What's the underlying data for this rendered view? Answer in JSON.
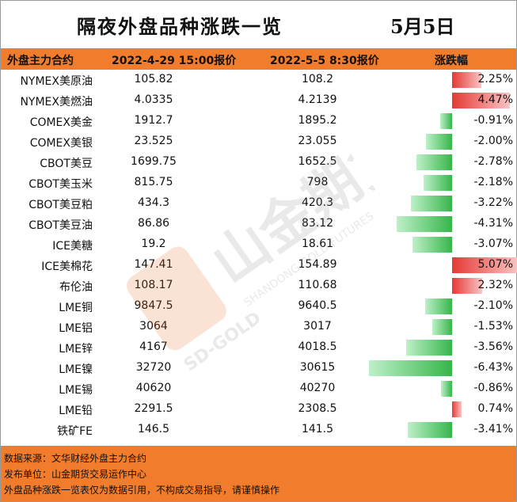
{
  "title": "隔夜外盘品种涨跌一览",
  "date": "5月5日",
  "headers": {
    "name": "外盘主力合约",
    "price1": "2022-4-29 15:00报价",
    "price2": "2022-5-5 8:30报价",
    "change": "涨跌幅"
  },
  "chart_data": {
    "type": "table",
    "columns": [
      "外盘主力合约",
      "2022-4-29 15:00报价",
      "2022-5-5 8:30报价",
      "涨跌幅"
    ],
    "rows": [
      {
        "name": "NYMEX美原油",
        "p1": "105.82",
        "p2": "108.2",
        "pct": 2.25,
        "pct_label": "2.25%"
      },
      {
        "name": "NYMEX美燃油",
        "p1": "4.0335",
        "p2": "4.2139",
        "pct": 4.47,
        "pct_label": "4.47%"
      },
      {
        "name": "COMEX美金",
        "p1": "1912.7",
        "p2": "1895.2",
        "pct": -0.91,
        "pct_label": "-0.91%"
      },
      {
        "name": "COMEX美银",
        "p1": "23.525",
        "p2": "23.055",
        "pct": -2.0,
        "pct_label": "-2.00%"
      },
      {
        "name": "CBOT美豆",
        "p1": "1699.75",
        "p2": "1652.5",
        "pct": -2.78,
        "pct_label": "-2.78%"
      },
      {
        "name": "CBOT美玉米",
        "p1": "815.75",
        "p2": "798",
        "pct": -2.18,
        "pct_label": "-2.18%"
      },
      {
        "name": "CBOT美豆粕",
        "p1": "434.3",
        "p2": "420.3",
        "pct": -3.22,
        "pct_label": "-3.22%"
      },
      {
        "name": "CBOT美豆油",
        "p1": "86.86",
        "p2": "83.12",
        "pct": -4.31,
        "pct_label": "-4.31%"
      },
      {
        "name": "ICE美糖",
        "p1": "19.2",
        "p2": "18.61",
        "pct": -3.07,
        "pct_label": "-3.07%"
      },
      {
        "name": "ICE美棉花",
        "p1": "147.41",
        "p2": "154.89",
        "pct": 5.07,
        "pct_label": "5.07%"
      },
      {
        "name": "布伦油",
        "p1": "108.17",
        "p2": "110.68",
        "pct": 2.32,
        "pct_label": "2.32%"
      },
      {
        "name": "LME铜",
        "p1": "9847.5",
        "p2": "9640.5",
        "pct": -2.1,
        "pct_label": "-2.10%"
      },
      {
        "name": "LME铝",
        "p1": "3064",
        "p2": "3017",
        "pct": -1.53,
        "pct_label": "-1.53%"
      },
      {
        "name": "LME锌",
        "p1": "4167",
        "p2": "4018.5",
        "pct": -3.56,
        "pct_label": "-3.56%"
      },
      {
        "name": "LME镍",
        "p1": "32720",
        "p2": "30615",
        "pct": -6.43,
        "pct_label": "-6.43%"
      },
      {
        "name": "LME锡",
        "p1": "40620",
        "p2": "40270",
        "pct": -0.86,
        "pct_label": "-0.86%"
      },
      {
        "name": "LME铅",
        "p1": "2291.5",
        "p2": "2308.5",
        "pct": 0.74,
        "pct_label": "0.74%"
      },
      {
        "name": "铁矿FE",
        "p1": "146.5",
        "p2": "141.5",
        "pct": -3.41,
        "pct_label": "-3.41%"
      }
    ]
  },
  "colors": {
    "accent": "#f07c2c",
    "up": "#e53935",
    "down": "#36b64a"
  },
  "watermark": {
    "brand": "山金期货",
    "brand_en": "SHANDONG GOLD FUTURES",
    "logo_text": "SD-GOLD"
  },
  "footer": {
    "source": "数据来源：文华财经外盘主力合约",
    "publisher": "发布单位：山金期货交易运作中心",
    "disclaimer": "外盘品种涨跌一览表仅为数据引用，不构成交易指导，请谨慎操作"
  }
}
